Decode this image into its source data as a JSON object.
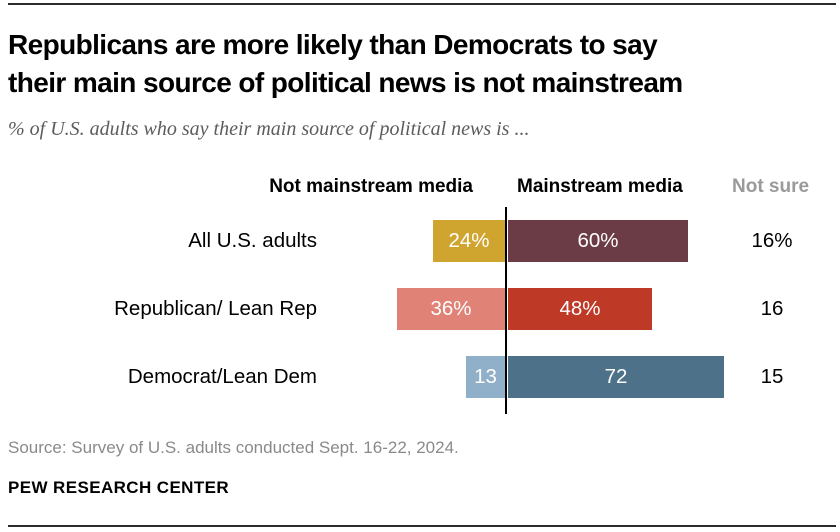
{
  "chart_data": {
    "type": "bar",
    "orientation": "horizontal",
    "diverging": true,
    "title": "Republicans are more likely than Democrats to say their main source of political news is not mainstream",
    "title_lines": [
      "Republicans are more likely than Democrats to say",
      "their main source of political news is not mainstream"
    ],
    "subtitle": "% of U.S. adults who say their main source of political news is ...",
    "unit": "%",
    "column_headers": [
      "Not mainstream media",
      "Mainstream media",
      "Not sure"
    ],
    "categories": [
      "All U.S. adults",
      "Republican/ Lean Rep",
      "Democrat/Lean Dem"
    ],
    "series": [
      {
        "name": "Not mainstream media",
        "values": [
          24,
          36,
          13
        ]
      },
      {
        "name": "Mainstream media",
        "values": [
          60,
          48,
          72
        ]
      },
      {
        "name": "Not sure",
        "values": [
          16,
          16,
          15
        ]
      }
    ],
    "rows": [
      {
        "label": "All U.S. adults",
        "left": {
          "value": 24,
          "label": "24%",
          "color": "#d0a52f"
        },
        "right": {
          "value": 60,
          "label": "60%",
          "color": "#6c3c46"
        },
        "not_sure": {
          "value": 16,
          "label": "16%"
        }
      },
      {
        "label": "Republican/ Lean Rep",
        "left": {
          "value": 36,
          "label": "36%",
          "color": "#e08275"
        },
        "right": {
          "value": 48,
          "label": "48%",
          "color": "#bf3927"
        },
        "not_sure": {
          "value": 16,
          "label": "16"
        }
      },
      {
        "label": "Democrat/Lean Dem",
        "left": {
          "value": 13,
          "label": "13",
          "color": "#90afc8"
        },
        "right": {
          "value": 72,
          "label": "72",
          "color": "#4d7189"
        },
        "not_sure": {
          "value": 15,
          "label": "15"
        }
      }
    ],
    "colors": {
      "axis": "#000000",
      "header_muted": "#9a9a9a",
      "bar_value_text": "#ffffff"
    },
    "legend_position": "column-headers",
    "grid": false
  },
  "footer": {
    "source": "Source: Survey of U.S. adults conducted Sept. 16-22, 2024.",
    "brand": "PEW RESEARCH CENTER"
  }
}
